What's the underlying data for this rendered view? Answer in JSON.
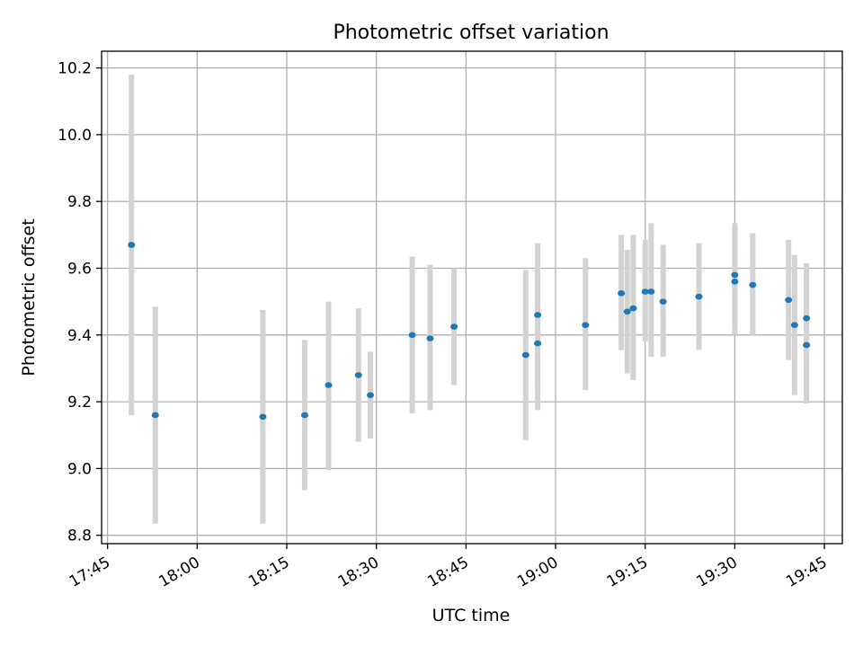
{
  "chart_data": {
    "type": "scatter",
    "title": "Photometric offset variation",
    "xlabel": "UTC time",
    "ylabel": "Photometric offset",
    "xlim": [
      "17:44",
      "19:48"
    ],
    "ylim": [
      8.775,
      10.25
    ],
    "x_ticks": [
      "17:45",
      "18:00",
      "18:15",
      "18:30",
      "18:45",
      "19:00",
      "19:15",
      "19:30",
      "19:45"
    ],
    "y_ticks": [
      "8.8",
      "9.0",
      "9.2",
      "9.4",
      "9.6",
      "9.8",
      "10.0",
      "10.2"
    ],
    "grid": true,
    "point_color": "#1f77b4",
    "errorbar_color": "#d3d3d3",
    "points": [
      {
        "x": "17:49",
        "y": 9.67,
        "low": 9.16,
        "high": 10.18
      },
      {
        "x": "17:53",
        "y": 9.16,
        "low": 8.835,
        "high": 9.485
      },
      {
        "x": "18:11",
        "y": 9.155,
        "low": 8.835,
        "high": 9.475
      },
      {
        "x": "18:18",
        "y": 9.16,
        "low": 8.935,
        "high": 9.385
      },
      {
        "x": "18:22",
        "y": 9.25,
        "low": 8.995,
        "high": 9.5
      },
      {
        "x": "18:27",
        "y": 9.28,
        "low": 9.08,
        "high": 9.48
      },
      {
        "x": "18:29",
        "y": 9.22,
        "low": 9.09,
        "high": 9.35
      },
      {
        "x": "18:36",
        "y": 9.4,
        "low": 9.165,
        "high": 9.635
      },
      {
        "x": "18:39",
        "y": 9.39,
        "low": 9.175,
        "high": 9.61
      },
      {
        "x": "18:43",
        "y": 9.425,
        "low": 9.25,
        "high": 9.6
      },
      {
        "x": "18:55",
        "y": 9.34,
        "low": 9.085,
        "high": 9.595
      },
      {
        "x": "18:57",
        "y": 9.375,
        "low": 9.175,
        "high": 9.575
      },
      {
        "x": "18:57",
        "y": 9.46,
        "low": 9.25,
        "high": 9.675
      },
      {
        "x": "19:05",
        "y": 9.43,
        "low": 9.235,
        "high": 9.63
      },
      {
        "x": "19:11",
        "y": 9.525,
        "low": 9.355,
        "high": 9.7
      },
      {
        "x": "19:12",
        "y": 9.47,
        "low": 9.285,
        "high": 9.655
      },
      {
        "x": "19:13",
        "y": 9.48,
        "low": 9.265,
        "high": 9.7
      },
      {
        "x": "19:15",
        "y": 9.53,
        "low": 9.38,
        "high": 9.685
      },
      {
        "x": "19:16",
        "y": 9.53,
        "low": 9.335,
        "high": 9.735
      },
      {
        "x": "19:18",
        "y": 9.5,
        "low": 9.335,
        "high": 9.67
      },
      {
        "x": "19:24",
        "y": 9.515,
        "low": 9.355,
        "high": 9.675
      },
      {
        "x": "19:30",
        "y": 9.56,
        "low": 9.4,
        "high": 9.72
      },
      {
        "x": "19:30",
        "y": 9.58,
        "low": 9.435,
        "high": 9.735
      },
      {
        "x": "19:33",
        "y": 9.55,
        "low": 9.4,
        "high": 9.705
      },
      {
        "x": "19:39",
        "y": 9.505,
        "low": 9.325,
        "high": 9.685
      },
      {
        "x": "19:40",
        "y": 9.43,
        "low": 9.22,
        "high": 9.64
      },
      {
        "x": "19:42",
        "y": 9.45,
        "low": 9.285,
        "high": 9.615
      },
      {
        "x": "19:42",
        "y": 9.37,
        "low": 9.195,
        "high": 9.55
      }
    ]
  }
}
